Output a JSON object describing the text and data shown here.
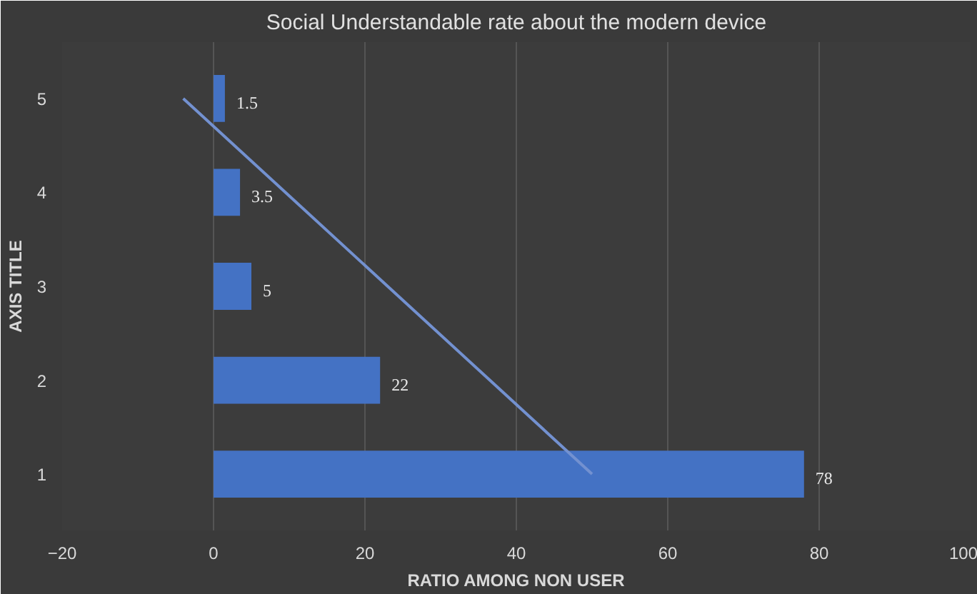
{
  "chart_data": {
    "type": "bar",
    "orientation": "horizontal",
    "title": "Social Understandable rate about the modern device",
    "xlabel": "RATIO AMONG NON USER",
    "ylabel": "AXIS TITLE",
    "categories": [
      "5",
      "4",
      "3",
      "2",
      "1"
    ],
    "series": [
      {
        "color": "#4472c4",
        "values": [
          1.5,
          3.5,
          5,
          22,
          78
        ],
        "value_labels": [
          "1.5",
          "3.5",
          "5",
          "22",
          "78"
        ]
      },
      {
        "type": "line",
        "color": "#7391d0",
        "values": [
          -4,
          9.5,
          23,
          36.5,
          50
        ]
      }
    ],
    "xlim": [
      -20,
      100
    ],
    "xticks": [
      -20,
      0,
      20,
      40,
      60,
      80,
      100
    ],
    "grid": "x"
  }
}
